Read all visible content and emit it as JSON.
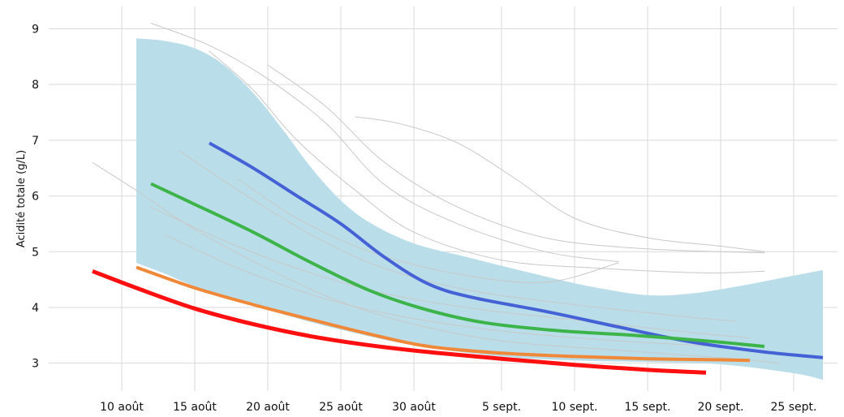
{
  "chart_data": {
    "type": "line",
    "title": "",
    "xlabel": "",
    "ylabel": "Acidité totale (g/L)",
    "xlim": [
      "2024-08-05",
      "2024-09-28"
    ],
    "ylim": [
      2.5,
      9.4
    ],
    "grid": true,
    "legend": "none",
    "x_ticks": [
      {
        "date": "2024-08-10",
        "label": "10 août"
      },
      {
        "date": "2024-08-15",
        "label": "15 août"
      },
      {
        "date": "2024-08-20",
        "label": "20 août"
      },
      {
        "date": "2024-08-25",
        "label": "25 août"
      },
      {
        "date": "2024-08-30",
        "label": "30 août"
      },
      {
        "date": "2024-09-05",
        "label": "5 sept."
      },
      {
        "date": "2024-09-10",
        "label": "10 sept."
      },
      {
        "date": "2024-09-15",
        "label": "15 sept."
      },
      {
        "date": "2024-09-20",
        "label": "20 sept."
      },
      {
        "date": "2024-09-25",
        "label": "25 sept."
      }
    ],
    "y_ticks": [
      {
        "value": 3,
        "label": "3"
      },
      {
        "value": 4,
        "label": "4"
      },
      {
        "value": 5,
        "label": "5"
      },
      {
        "value": 6,
        "label": "6"
      },
      {
        "value": 7,
        "label": "7"
      },
      {
        "value": 8,
        "label": "8"
      },
      {
        "value": 9,
        "label": "9"
      }
    ],
    "band": {
      "color": "#badee9",
      "upper": [
        {
          "x": "2024-08-11",
          "y": 8.83
        },
        {
          "x": "2024-08-13",
          "y": 8.78
        },
        {
          "x": "2024-08-15",
          "y": 8.65
        },
        {
          "x": "2024-08-17",
          "y": 8.35
        },
        {
          "x": "2024-08-19",
          "y": 7.85
        },
        {
          "x": "2024-08-21",
          "y": 7.2
        },
        {
          "x": "2024-08-23",
          "y": 6.5
        },
        {
          "x": "2024-08-25",
          "y": 5.92
        },
        {
          "x": "2024-08-27",
          "y": 5.52
        },
        {
          "x": "2024-08-30",
          "y": 5.15
        },
        {
          "x": "2024-09-03",
          "y": 4.88
        },
        {
          "x": "2024-09-07",
          "y": 4.62
        },
        {
          "x": "2024-09-11",
          "y": 4.38
        },
        {
          "x": "2024-09-15",
          "y": 4.22
        },
        {
          "x": "2024-09-18",
          "y": 4.25
        },
        {
          "x": "2024-09-21",
          "y": 4.37
        },
        {
          "x": "2024-09-24",
          "y": 4.52
        },
        {
          "x": "2024-09-27",
          "y": 4.67
        }
      ],
      "lower": [
        {
          "x": "2024-08-11",
          "y": 4.8
        },
        {
          "x": "2024-08-13",
          "y": 4.6
        },
        {
          "x": "2024-08-15",
          "y": 4.38
        },
        {
          "x": "2024-08-18",
          "y": 4.12
        },
        {
          "x": "2024-08-21",
          "y": 3.88
        },
        {
          "x": "2024-08-25",
          "y": 3.6
        },
        {
          "x": "2024-08-30",
          "y": 3.32
        },
        {
          "x": "2024-09-05",
          "y": 3.12
        },
        {
          "x": "2024-09-10",
          "y": 3.05
        },
        {
          "x": "2024-09-15",
          "y": 3.02
        },
        {
          "x": "2024-09-20",
          "y": 2.98
        },
        {
          "x": "2024-09-25",
          "y": 2.82
        },
        {
          "x": "2024-09-27",
          "y": 2.7
        }
      ]
    },
    "background_series": [
      {
        "color": "#c8c8c8",
        "points": [
          {
            "x": "2024-08-12",
            "y": 9.1
          },
          {
            "x": "2024-08-16",
            "y": 8.7
          },
          {
            "x": "2024-08-20",
            "y": 8.1
          },
          {
            "x": "2024-08-24",
            "y": 7.3
          },
          {
            "x": "2024-08-28",
            "y": 6.2
          },
          {
            "x": "2024-09-02",
            "y": 5.5
          },
          {
            "x": "2024-09-08",
            "y": 5.0
          },
          {
            "x": "2024-09-13",
            "y": 4.82
          }
        ]
      },
      {
        "color": "#c8c8c8",
        "points": [
          {
            "x": "2024-08-16",
            "y": 8.6
          },
          {
            "x": "2024-08-19",
            "y": 7.9
          },
          {
            "x": "2024-08-22",
            "y": 7.0
          },
          {
            "x": "2024-08-26",
            "y": 6.1
          },
          {
            "x": "2024-08-30",
            "y": 5.35
          },
          {
            "x": "2024-09-05",
            "y": 4.85
          },
          {
            "x": "2024-09-12",
            "y": 4.7
          },
          {
            "x": "2024-09-19",
            "y": 4.62
          },
          {
            "x": "2024-09-23",
            "y": 4.65
          }
        ]
      },
      {
        "color": "#c8c8c8",
        "points": [
          {
            "x": "2024-08-20",
            "y": 8.35
          },
          {
            "x": "2024-08-24",
            "y": 7.6
          },
          {
            "x": "2024-08-28",
            "y": 6.6
          },
          {
            "x": "2024-09-02",
            "y": 5.8
          },
          {
            "x": "2024-09-08",
            "y": 5.25
          },
          {
            "x": "2024-09-15",
            "y": 5.05
          },
          {
            "x": "2024-09-23",
            "y": 4.98
          }
        ]
      },
      {
        "color": "#c8c8c8",
        "points": [
          {
            "x": "2024-08-26",
            "y": 7.42
          },
          {
            "x": "2024-08-29",
            "y": 7.3
          },
          {
            "x": "2024-09-02",
            "y": 6.95
          },
          {
            "x": "2024-09-06",
            "y": 6.3
          },
          {
            "x": "2024-09-10",
            "y": 5.6
          },
          {
            "x": "2024-09-15",
            "y": 5.25
          },
          {
            "x": "2024-09-20",
            "y": 5.1
          },
          {
            "x": "2024-09-23",
            "y": 5.0
          }
        ]
      },
      {
        "color": "#c8c8c8",
        "points": [
          {
            "x": "2024-08-08",
            "y": 6.6
          },
          {
            "x": "2024-08-11",
            "y": 6.1
          },
          {
            "x": "2024-08-15",
            "y": 5.4
          },
          {
            "x": "2024-08-20",
            "y": 4.7
          },
          {
            "x": "2024-08-25",
            "y": 4.1
          },
          {
            "x": "2024-08-30",
            "y": 3.7
          },
          {
            "x": "2024-09-05",
            "y": 3.4
          },
          {
            "x": "2024-09-12",
            "y": 3.25
          },
          {
            "x": "2024-09-20",
            "y": 3.1
          },
          {
            "x": "2024-09-24",
            "y": 3.0
          }
        ]
      },
      {
        "color": "#c8c8c8",
        "points": [
          {
            "x": "2024-08-14",
            "y": 6.8
          },
          {
            "x": "2024-08-18",
            "y": 6.1
          },
          {
            "x": "2024-08-23",
            "y": 5.3
          },
          {
            "x": "2024-08-28",
            "y": 4.7
          },
          {
            "x": "2024-09-03",
            "y": 4.3
          },
          {
            "x": "2024-09-10",
            "y": 4.05
          },
          {
            "x": "2024-09-17",
            "y": 3.85
          },
          {
            "x": "2024-09-21",
            "y": 3.75
          }
        ]
      },
      {
        "color": "#c8c8c8",
        "points": [
          {
            "x": "2024-08-12",
            "y": 5.8
          },
          {
            "x": "2024-08-17",
            "y": 5.2
          },
          {
            "x": "2024-08-22",
            "y": 4.7
          },
          {
            "x": "2024-08-28",
            "y": 4.25
          },
          {
            "x": "2024-09-04",
            "y": 3.95
          },
          {
            "x": "2024-09-11",
            "y": 3.75
          },
          {
            "x": "2024-09-18",
            "y": 3.55
          },
          {
            "x": "2024-09-22",
            "y": 3.45
          }
        ]
      },
      {
        "color": "#c8c8c8",
        "points": [
          {
            "x": "2024-08-18",
            "y": 6.3
          },
          {
            "x": "2024-08-22",
            "y": 5.6
          },
          {
            "x": "2024-08-27",
            "y": 5.0
          },
          {
            "x": "2024-09-02",
            "y": 4.6
          },
          {
            "x": "2024-09-08",
            "y": 4.45
          },
          {
            "x": "2024-09-13",
            "y": 4.8
          }
        ]
      },
      {
        "color": "#c8c8c8",
        "points": [
          {
            "x": "2024-08-13",
            "y": 5.3
          },
          {
            "x": "2024-08-18",
            "y": 4.7
          },
          {
            "x": "2024-08-24",
            "y": 4.15
          },
          {
            "x": "2024-08-30",
            "y": 3.8
          },
          {
            "x": "2024-09-06",
            "y": 3.55
          },
          {
            "x": "2024-09-13",
            "y": 3.4
          },
          {
            "x": "2024-09-20",
            "y": 3.3
          }
        ]
      }
    ],
    "series": [
      {
        "color": "#4462d6",
        "width": 4,
        "points": [
          {
            "x": "2024-08-16",
            "y": 6.95
          },
          {
            "x": "2024-08-19",
            "y": 6.5
          },
          {
            "x": "2024-08-22",
            "y": 6.0
          },
          {
            "x": "2024-08-25",
            "y": 5.5
          },
          {
            "x": "2024-08-28",
            "y": 4.9
          },
          {
            "x": "2024-08-31",
            "y": 4.42
          },
          {
            "x": "2024-09-03",
            "y": 4.18
          },
          {
            "x": "2024-09-08",
            "y": 3.93
          },
          {
            "x": "2024-09-13",
            "y": 3.65
          },
          {
            "x": "2024-09-18",
            "y": 3.38
          },
          {
            "x": "2024-09-23",
            "y": 3.2
          },
          {
            "x": "2024-09-27",
            "y": 3.1
          }
        ]
      },
      {
        "color": "#3cb449",
        "width": 4,
        "points": [
          {
            "x": "2024-08-12",
            "y": 6.22
          },
          {
            "x": "2024-08-15",
            "y": 5.85
          },
          {
            "x": "2024-08-19",
            "y": 5.35
          },
          {
            "x": "2024-08-23",
            "y": 4.8
          },
          {
            "x": "2024-08-27",
            "y": 4.3
          },
          {
            "x": "2024-08-31",
            "y": 3.95
          },
          {
            "x": "2024-09-04",
            "y": 3.72
          },
          {
            "x": "2024-09-09",
            "y": 3.58
          },
          {
            "x": "2024-09-14",
            "y": 3.5
          },
          {
            "x": "2024-09-19",
            "y": 3.4
          },
          {
            "x": "2024-09-23",
            "y": 3.3
          }
        ]
      },
      {
        "color": "#f0883a",
        "width": 4,
        "points": [
          {
            "x": "2024-08-11",
            "y": 4.72
          },
          {
            "x": "2024-08-15",
            "y": 4.35
          },
          {
            "x": "2024-08-19",
            "y": 4.05
          },
          {
            "x": "2024-08-23",
            "y": 3.78
          },
          {
            "x": "2024-08-27",
            "y": 3.52
          },
          {
            "x": "2024-08-31",
            "y": 3.3
          },
          {
            "x": "2024-09-05",
            "y": 3.18
          },
          {
            "x": "2024-09-10",
            "y": 3.12
          },
          {
            "x": "2024-09-15",
            "y": 3.08
          },
          {
            "x": "2024-09-20",
            "y": 3.06
          },
          {
            "x": "2024-09-22",
            "y": 3.05
          }
        ]
      },
      {
        "color": "#ff0f0f",
        "width": 5,
        "points": [
          {
            "x": "2024-08-08",
            "y": 4.65
          },
          {
            "x": "2024-08-11",
            "y": 4.35
          },
          {
            "x": "2024-08-15",
            "y": 3.98
          },
          {
            "x": "2024-08-19",
            "y": 3.7
          },
          {
            "x": "2024-08-23",
            "y": 3.48
          },
          {
            "x": "2024-08-27",
            "y": 3.32
          },
          {
            "x": "2024-08-31",
            "y": 3.2
          },
          {
            "x": "2024-09-05",
            "y": 3.08
          },
          {
            "x": "2024-09-10",
            "y": 2.97
          },
          {
            "x": "2024-09-15",
            "y": 2.88
          },
          {
            "x": "2024-09-19",
            "y": 2.83
          }
        ]
      }
    ]
  }
}
